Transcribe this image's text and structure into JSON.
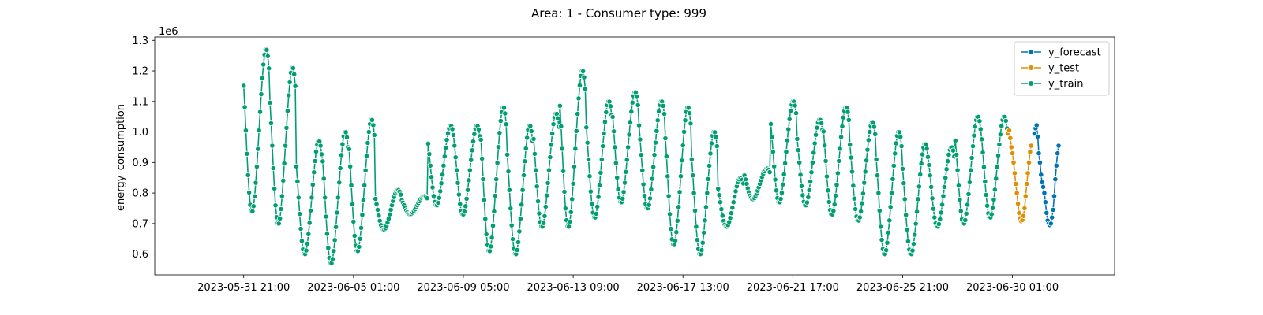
{
  "chart_data": {
    "type": "line",
    "title": "Area: 1 - Consumer type: 999",
    "xlabel": "",
    "ylabel": "energy_consumption",
    "y_multiplier": "1e6",
    "y_unit": 1000000,
    "grid": false,
    "legend_position": "top-right",
    "x_start": "2023-05-31 21:00",
    "x_step_hours": 1,
    "xlim_hours": [
      -81,
      793
    ],
    "ylim": [
      0.532,
      1.311
    ],
    "x_ticks": [
      {
        "hour": 0,
        "label": "2023-05-31 21:00"
      },
      {
        "hour": 100,
        "label": "2023-06-05 01:00"
      },
      {
        "hour": 200,
        "label": "2023-06-09 05:00"
      },
      {
        "hour": 300,
        "label": "2023-06-13 09:00"
      },
      {
        "hour": 400,
        "label": "2023-06-17 13:00"
      },
      {
        "hour": 500,
        "label": "2023-06-21 17:00"
      },
      {
        "hour": 600,
        "label": "2023-06-25 21:00"
      },
      {
        "hour": 700,
        "label": "2023-06-30 01:00"
      }
    ],
    "y_ticks": [
      0.6,
      0.7,
      0.8,
      0.9,
      1.0,
      1.1,
      1.2,
      1.3
    ],
    "series": [
      {
        "name": "y_forecast",
        "color": "#0173b2",
        "start_hour": 720,
        "values": [
          0.995,
          1.012,
          1.022,
          0.985,
          0.93,
          0.9,
          0.86,
          0.835,
          0.82,
          0.8,
          0.77,
          0.735,
          0.71,
          0.7,
          0.695,
          0.7,
          0.72,
          0.745,
          0.79,
          0.845,
          0.89,
          0.93,
          0.955
        ]
      },
      {
        "name": "y_test",
        "color": "#de8f05",
        "start_hour": 696,
        "values": [
          0.995,
          1.005,
          0.98,
          0.95,
          0.93,
          0.9,
          0.865,
          0.83,
          0.8,
          0.765,
          0.735,
          0.715,
          0.708,
          0.712,
          0.725,
          0.75,
          0.79,
          0.83,
          0.865,
          0.9,
          0.935,
          0.955
        ]
      },
      {
        "name": "y_train",
        "color": "#029e73",
        "start_hour": 0,
        "generator": "daily-cycle",
        "daily_peaks": [
          1.27,
          1.21,
          0.97,
          1.0,
          1.04,
          0.81,
          0.79,
          1.02,
          1.02,
          1.08,
          1.02,
          1.06,
          1.2,
          1.1,
          1.13,
          1.1,
          1.08,
          1.0,
          0.85,
          0.88,
          1.1,
          1.04,
          1.08,
          1.03,
          1.0,
          0.96,
          0.95,
          1.05,
          1.05,
          1.01
        ],
        "daily_troughs": [
          0.74,
          0.7,
          0.6,
          0.57,
          0.61,
          0.68,
          0.73,
          0.76,
          0.73,
          0.61,
          0.6,
          0.69,
          0.69,
          0.72,
          0.77,
          0.75,
          0.63,
          0.6,
          0.69,
          0.78,
          0.77,
          0.76,
          0.73,
          0.71,
          0.6,
          0.6,
          0.69,
          0.7,
          0.72,
          0.73
        ]
      }
    ]
  },
  "legend": [
    {
      "name": "y_forecast",
      "color": "#0173b2"
    },
    {
      "name": "y_test",
      "color": "#de8f05"
    },
    {
      "name": "y_train",
      "color": "#029e73"
    }
  ]
}
